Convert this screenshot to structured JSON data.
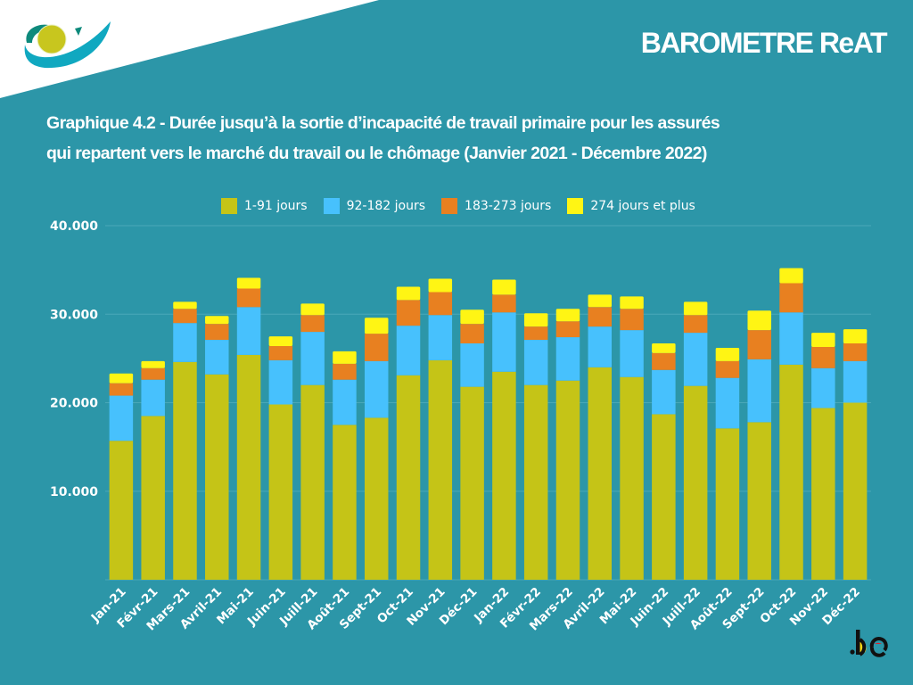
{
  "header": {
    "brand": "BAROMETRE ReAT",
    "logo_icon": "inami-eye-logo-icon",
    "footer_logo": ".be"
  },
  "colors": {
    "background": "#2c96a8",
    "series": [
      "#c5c417",
      "#47c1fd",
      "#e88020",
      "#fff514"
    ],
    "gridline": "#4aa8b8",
    "text": "#ffffff"
  },
  "chart_data": {
    "type": "bar",
    "stacked": true,
    "title": "Graphique 4.2 - Durée jusqu’à la sortie d’incapacité de travail primaire pour les assurés qui repartent vers le marché du travail ou le chômage (Janvier 2021 - Décembre 2022)",
    "title_lines": [
      "Graphique 4.2 - Durée jusqu’à la sortie d’incapacité de travail primaire pour les assurés",
      "qui repartent vers le marché du travail ou le chômage (Janvier 2021 - Décembre 2022)"
    ],
    "xlabel": "",
    "ylabel": "",
    "ylim": [
      0,
      40000
    ],
    "yticks": [
      10000,
      20000,
      30000,
      40000
    ],
    "ytick_labels": [
      "10.000",
      "20.000",
      "30.000",
      "40.000"
    ],
    "grid": true,
    "legend_position": "top-center",
    "categories": [
      "Jan-21",
      "Févr-21",
      "Mars-21",
      "Avril-21",
      "Mai-21",
      "Juin-21",
      "Juill-21",
      "Août-21",
      "Sept-21",
      "Oct-21",
      "Nov-21",
      "Déc-21",
      "Jan-22",
      "Févr-22",
      "Mars-22",
      "Avril-22",
      "Mai-22",
      "Juin-22",
      "Juill-22",
      "Août-22",
      "Sept-22",
      "Oct-22",
      "Nov-22",
      "Déc-22"
    ],
    "series": [
      {
        "name": "1-91 jours",
        "values": [
          15700,
          18500,
          24600,
          23200,
          25400,
          19800,
          22000,
          17500,
          18300,
          23100,
          24800,
          21800,
          23500,
          22000,
          22500,
          24000,
          22900,
          18700,
          21900,
          17100,
          17800,
          24300,
          19400,
          20000
        ]
      },
      {
        "name": "92-182 jours",
        "values": [
          5100,
          4100,
          4400,
          3900,
          5400,
          5000,
          6000,
          5100,
          6400,
          5600,
          5100,
          4900,
          6700,
          5100,
          4900,
          4600,
          5300,
          5000,
          6000,
          5700,
          7100,
          5900,
          4500,
          4700
        ]
      },
      {
        "name": "183-273 jours",
        "values": [
          1400,
          1300,
          1600,
          1800,
          2100,
          1600,
          1900,
          1800,
          3100,
          2900,
          2600,
          2200,
          2000,
          1500,
          1800,
          2200,
          2400,
          1900,
          2000,
          1900,
          3300,
          3300,
          2400,
          2000
        ]
      },
      {
        "name": "274 jours et plus",
        "values": [
          1100,
          800,
          800,
          900,
          1200,
          1100,
          1300,
          1400,
          1800,
          1500,
          1500,
          1600,
          1700,
          1500,
          1400,
          1400,
          1400,
          1100,
          1500,
          1500,
          2200,
          1700,
          1600,
          1600
        ]
      }
    ]
  }
}
